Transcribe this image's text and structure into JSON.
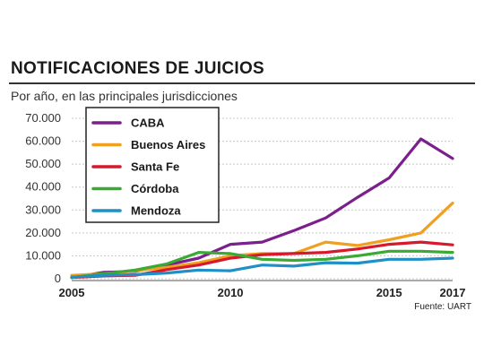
{
  "header": {
    "title": "NOTIFICACIONES DE JUICIOS",
    "subtitle": "Por año, en las principales jurisdicciones",
    "source": "Fuente: UART"
  },
  "chart_data": {
    "type": "line",
    "title": "NOTIFICACIONES DE JUICIOS",
    "subtitle": "Por año, en las principales jurisdicciones",
    "xlabel": "",
    "ylabel": "",
    "xlim": [
      2005,
      2017
    ],
    "ylim": [
      0,
      70000
    ],
    "y_ticks": [
      0,
      10000,
      20000,
      30000,
      40000,
      50000,
      60000,
      70000
    ],
    "y_tick_labels": [
      "0",
      "10.000",
      "20.000",
      "30.000",
      "40.000",
      "50.000",
      "60.000",
      "70.000"
    ],
    "x_ticks": [
      2005,
      2010,
      2015,
      2017
    ],
    "x_tick_labels": [
      "2005",
      "2010",
      "2015",
      "2017"
    ],
    "grid": true,
    "legend_position": "top-left",
    "x": [
      2005,
      2006,
      2007,
      2008,
      2009,
      2010,
      2011,
      2012,
      2013,
      2014,
      2015,
      2016,
      2017
    ],
    "series": [
      {
        "name": "CABA",
        "color": "#7b1f8c",
        "values": [
          500,
          2800,
          3200,
          6000,
          9000,
          15000,
          16000,
          21000,
          26500,
          35500,
          44000,
          61000,
          52500
        ]
      },
      {
        "name": "Buenos Aires",
        "color": "#f0a020",
        "values": [
          1500,
          2200,
          3500,
          5000,
          7000,
          10000,
          11000,
          11000,
          16000,
          14500,
          17000,
          20000,
          33000
        ]
      },
      {
        "name": "Santa Fe",
        "color": "#d7192d",
        "values": [
          500,
          1200,
          1500,
          4000,
          6000,
          9000,
          10500,
          11000,
          11500,
          13000,
          15000,
          16000,
          14800
        ]
      },
      {
        "name": "Córdoba",
        "color": "#3aaa35",
        "values": [
          500,
          2200,
          3800,
          6500,
          11500,
          11000,
          8500,
          8000,
          8500,
          10000,
          12000,
          12000,
          11500
        ]
      },
      {
        "name": "Mendoza",
        "color": "#1e8fc7",
        "values": [
          700,
          1500,
          1800,
          2500,
          3800,
          3500,
          6000,
          5500,
          7000,
          6800,
          8500,
          8500,
          9000
        ]
      }
    ]
  }
}
